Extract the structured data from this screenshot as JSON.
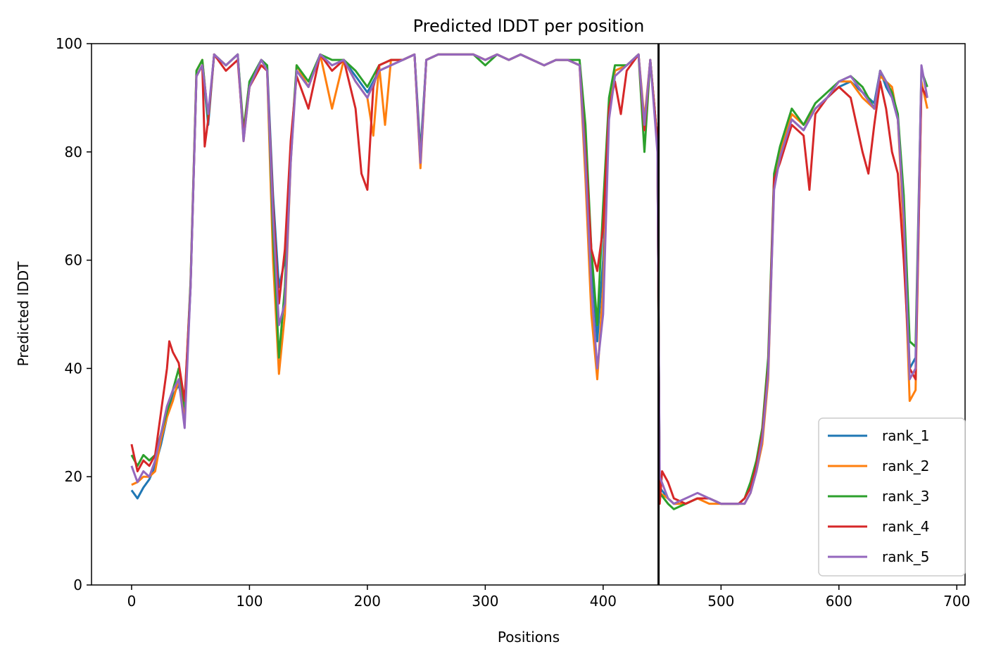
{
  "chart_data": {
    "type": "line",
    "title": "Predicted lDDT per position",
    "xlabel": "Positions",
    "ylabel": "Predicted lDDT",
    "xlim": [
      -34,
      707
    ],
    "ylim": [
      0,
      100
    ],
    "xticks": [
      0,
      100,
      200,
      300,
      400,
      500,
      600,
      700
    ],
    "yticks": [
      0,
      20,
      40,
      60,
      80,
      100
    ],
    "grid": false,
    "legend_position": "lower-right",
    "chain_break_x": 447,
    "chain_break_color": "#000000",
    "series": [
      {
        "name": "rank_1",
        "color": "#1f77b4",
        "x": [
          0,
          5,
          10,
          15,
          20,
          25,
          30,
          35,
          40,
          45,
          50,
          55,
          60,
          65,
          70,
          80,
          90,
          95,
          100,
          110,
          115,
          120,
          125,
          130,
          135,
          140,
          150,
          160,
          170,
          180,
          190,
          200,
          210,
          220,
          230,
          240,
          245,
          250,
          260,
          270,
          280,
          290,
          300,
          310,
          320,
          330,
          340,
          350,
          360,
          370,
          380,
          385,
          390,
          395,
          400,
          405,
          410,
          420,
          430,
          435,
          440,
          446,
          448,
          455,
          460,
          470,
          480,
          490,
          500,
          510,
          515,
          520,
          525,
          530,
          535,
          540,
          545,
          550,
          560,
          570,
          580,
          590,
          600,
          610,
          620,
          630,
          635,
          640,
          645,
          650,
          655,
          660,
          665,
          670,
          675
        ],
        "values": [
          17.5,
          16,
          18,
          19.5,
          22,
          26,
          31,
          35,
          37,
          32,
          55,
          94,
          96,
          85,
          98,
          96,
          98,
          83,
          93,
          97,
          96,
          72,
          55,
          60,
          80,
          95,
          92,
          98,
          96,
          97,
          94,
          91,
          95,
          96,
          97,
          98,
          80,
          97,
          98,
          98,
          98,
          98,
          97,
          98,
          97,
          98,
          97,
          96,
          97,
          97,
          96,
          82,
          60,
          45,
          60,
          88,
          95,
          96,
          98,
          85,
          97,
          82,
          18,
          16,
          15,
          15,
          16,
          16,
          15,
          15,
          15,
          16,
          18,
          22,
          27,
          40,
          75,
          80,
          86,
          84,
          88,
          90,
          92,
          93,
          91,
          89,
          95,
          92,
          90,
          86,
          70,
          40,
          42,
          92,
          90
        ]
      },
      {
        "name": "rank_2",
        "color": "#ff7f0e",
        "x": [
          0,
          5,
          10,
          15,
          20,
          25,
          30,
          35,
          40,
          45,
          50,
          55,
          60,
          65,
          70,
          80,
          90,
          95,
          100,
          110,
          115,
          120,
          125,
          130,
          135,
          140,
          150,
          160,
          170,
          180,
          190,
          200,
          205,
          210,
          215,
          220,
          230,
          240,
          245,
          250,
          260,
          270,
          280,
          290,
          300,
          310,
          320,
          330,
          340,
          350,
          360,
          370,
          380,
          385,
          390,
          395,
          400,
          405,
          410,
          420,
          430,
          435,
          440,
          446,
          448,
          455,
          460,
          470,
          480,
          490,
          500,
          510,
          515,
          520,
          525,
          530,
          535,
          540,
          545,
          550,
          560,
          570,
          580,
          590,
          600,
          610,
          620,
          630,
          635,
          640,
          645,
          650,
          655,
          660,
          665,
          670,
          675
        ],
        "values": [
          18.5,
          19,
          20,
          20,
          21,
          27,
          31,
          34,
          38,
          30,
          56,
          95,
          97,
          86,
          98,
          96,
          98,
          82,
          92,
          97,
          95,
          60,
          39,
          50,
          78,
          96,
          92,
          98,
          88,
          97,
          93,
          90,
          83,
          96,
          85,
          97,
          97,
          98,
          77,
          97,
          98,
          98,
          98,
          98,
          97,
          98,
          97,
          98,
          97,
          96,
          97,
          97,
          96,
          75,
          50,
          38,
          55,
          88,
          95,
          96,
          98,
          86,
          97,
          82,
          17,
          16,
          15,
          15,
          16,
          15,
          15,
          15,
          15,
          15,
          17,
          21,
          26,
          38,
          74,
          80,
          87,
          85,
          88,
          90,
          93,
          93,
          90,
          88,
          94,
          93,
          92,
          86,
          65,
          34,
          36,
          93,
          88
        ]
      },
      {
        "name": "rank_3",
        "color": "#2ca02c",
        "x": [
          0,
          5,
          10,
          15,
          20,
          25,
          30,
          35,
          40,
          45,
          50,
          55,
          60,
          65,
          70,
          80,
          90,
          95,
          100,
          110,
          115,
          120,
          125,
          130,
          135,
          140,
          150,
          160,
          170,
          180,
          190,
          200,
          210,
          220,
          230,
          240,
          245,
          250,
          260,
          270,
          280,
          290,
          300,
          310,
          320,
          330,
          340,
          350,
          360,
          370,
          380,
          385,
          390,
          395,
          400,
          405,
          410,
          420,
          430,
          435,
          440,
          446,
          448,
          455,
          460,
          470,
          480,
          490,
          500,
          510,
          515,
          520,
          525,
          530,
          535,
          540,
          545,
          550,
          560,
          570,
          580,
          590,
          600,
          610,
          620,
          630,
          635,
          640,
          645,
          650,
          655,
          660,
          665,
          670,
          675
        ],
        "values": [
          24,
          22,
          24,
          23,
          24,
          28,
          32,
          36,
          40,
          33,
          56,
          95,
          97,
          86,
          98,
          96,
          98,
          84,
          93,
          97,
          96,
          65,
          42,
          55,
          80,
          96,
          93,
          98,
          97,
          97,
          95,
          92,
          96,
          97,
          97,
          98,
          79,
          97,
          98,
          98,
          98,
          98,
          96,
          98,
          97,
          98,
          97,
          96,
          97,
          97,
          97,
          85,
          62,
          48,
          70,
          90,
          96,
          96,
          98,
          80,
          97,
          82,
          17,
          15,
          14,
          15,
          16,
          16,
          15,
          15,
          15,
          16,
          19,
          23,
          29,
          42,
          76,
          81,
          88,
          85,
          89,
          91,
          93,
          94,
          92,
          88,
          95,
          93,
          91,
          87,
          72,
          45,
          44,
          95,
          92
        ]
      },
      {
        "name": "rank_4",
        "color": "#d62728",
        "x": [
          0,
          5,
          10,
          15,
          20,
          25,
          30,
          32,
          35,
          40,
          45,
          50,
          55,
          60,
          62,
          65,
          70,
          80,
          90,
          95,
          100,
          110,
          115,
          120,
          125,
          130,
          135,
          140,
          150,
          160,
          170,
          180,
          190,
          195,
          200,
          205,
          210,
          220,
          230,
          240,
          245,
          250,
          260,
          270,
          280,
          290,
          300,
          310,
          320,
          330,
          340,
          350,
          360,
          370,
          380,
          385,
          390,
          395,
          400,
          405,
          410,
          415,
          420,
          430,
          435,
          440,
          446,
          448,
          450,
          455,
          460,
          470,
          480,
          490,
          500,
          510,
          515,
          520,
          525,
          530,
          535,
          540,
          545,
          550,
          560,
          570,
          575,
          580,
          590,
          600,
          610,
          620,
          625,
          630,
          635,
          640,
          645,
          650,
          655,
          660,
          665,
          670,
          675
        ],
        "values": [
          26,
          21,
          23,
          22,
          24,
          32,
          40,
          45,
          43,
          41,
          34,
          55,
          94,
          96,
          81,
          86,
          98,
          95,
          97,
          83,
          92,
          96,
          95,
          70,
          52,
          62,
          82,
          94,
          88,
          98,
          95,
          97,
          88,
          76,
          73,
          92,
          96,
          97,
          97,
          98,
          78,
          97,
          98,
          98,
          98,
          98,
          97,
          98,
          97,
          98,
          97,
          96,
          97,
          97,
          96,
          80,
          62,
          58,
          66,
          88,
          93,
          87,
          95,
          98,
          84,
          97,
          82,
          15,
          21,
          19,
          16,
          15,
          16,
          16,
          15,
          15,
          15,
          16,
          18,
          22,
          28,
          40,
          75,
          78,
          85,
          83,
          73,
          87,
          90,
          92,
          90,
          80,
          76,
          85,
          93,
          88,
          80,
          76,
          60,
          40,
          38,
          92,
          90
        ]
      },
      {
        "name": "rank_5",
        "color": "#9467bd",
        "x": [
          0,
          5,
          10,
          15,
          20,
          25,
          30,
          35,
          40,
          45,
          50,
          55,
          60,
          65,
          70,
          80,
          90,
          95,
          100,
          110,
          115,
          120,
          125,
          130,
          135,
          140,
          150,
          160,
          170,
          180,
          190,
          200,
          210,
          220,
          230,
          240,
          245,
          250,
          260,
          270,
          280,
          290,
          300,
          310,
          320,
          330,
          340,
          350,
          360,
          370,
          380,
          385,
          390,
          395,
          400,
          405,
          410,
          420,
          430,
          435,
          440,
          446,
          448,
          455,
          460,
          470,
          480,
          490,
          500,
          510,
          515,
          520,
          525,
          530,
          535,
          540,
          545,
          550,
          560,
          570,
          580,
          590,
          600,
          610,
          620,
          630,
          635,
          640,
          645,
          650,
          655,
          660,
          665,
          670,
          675
        ],
        "values": [
          22,
          19,
          21,
          20,
          23,
          28,
          33,
          36,
          38,
          29,
          55,
          94,
          96,
          87,
          98,
          96,
          98,
          82,
          92,
          97,
          95,
          68,
          48,
          52,
          78,
          95,
          92,
          98,
          96,
          97,
          93,
          90,
          95,
          96,
          97,
          98,
          78,
          97,
          98,
          98,
          98,
          98,
          97,
          98,
          97,
          98,
          97,
          96,
          97,
          97,
          96,
          78,
          55,
          40,
          50,
          86,
          94,
          96,
          98,
          85,
          97,
          80,
          20,
          16,
          15,
          16,
          17,
          16,
          15,
          15,
          15,
          15,
          17,
          21,
          27,
          39,
          73,
          79,
          86,
          84,
          88,
          90,
          93,
          94,
          91,
          88,
          95,
          93,
          90,
          86,
          68,
          38,
          40,
          96,
          90
        ]
      }
    ]
  }
}
